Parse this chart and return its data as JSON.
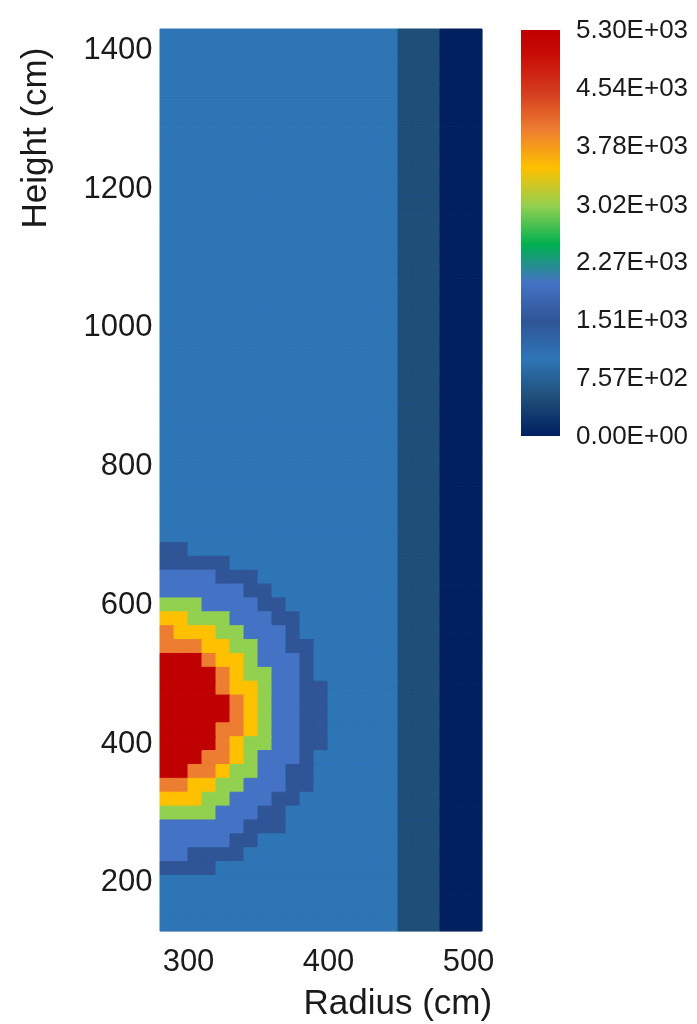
{
  "chart_data": {
    "type": "heatmap",
    "xlabel": "Radius (cm)",
    "ylabel": "Height (cm)",
    "x": [
      285,
      295,
      305,
      315,
      325,
      335,
      345,
      355,
      365,
      375,
      385,
      395,
      405,
      415,
      425,
      435,
      445,
      455,
      465,
      475,
      485,
      495,
      505
    ],
    "y_categories": [
      null,
      "1400",
      null,
      null,
      null,
      null,
      null,
      null,
      null,
      null,
      null,
      "1200",
      null,
      null,
      null,
      null,
      null,
      null,
      null,
      null,
      null,
      "1000",
      null,
      null,
      null,
      null,
      null,
      null,
      null,
      null,
      null,
      "800",
      null,
      null,
      null,
      null,
      null,
      null,
      null,
      null,
      null,
      "600",
      null,
      null,
      null,
      null,
      null,
      null,
      null,
      null,
      null,
      "400",
      null,
      null,
      null,
      null,
      null,
      null,
      null,
      null,
      null,
      "200",
      null,
      null,
      null
    ],
    "xlim": [
      280,
      510
    ],
    "xticks": [
      300,
      400,
      500
    ],
    "clim": [
      0,
      5300
    ],
    "cticks": [
      {
        "value": 0,
        "label": "0.00E+00"
      },
      {
        "value": 757,
        "label": "7.57E+02"
      },
      {
        "value": 1510,
        "label": "1.51E+03"
      },
      {
        "value": 2270,
        "label": "2.27E+03"
      },
      {
        "value": 3020,
        "label": "3.02E+03"
      },
      {
        "value": 3780,
        "label": "3.78E+03"
      },
      {
        "value": 4540,
        "label": "4.54E+03"
      },
      {
        "value": 5300,
        "label": "5.30E+03"
      }
    ],
    "cells": [
      [
        1000,
        1000,
        1000,
        1000,
        1000,
        1000,
        1000,
        1000,
        1000,
        1000,
        1000,
        1000,
        1000,
        1000,
        1000,
        1000,
        1000,
        500,
        500,
        500,
        0,
        0,
        0
      ],
      [
        1000,
        1000,
        1000,
        1000,
        1000,
        1000,
        1000,
        1000,
        1000,
        1000,
        1000,
        1000,
        1000,
        1000,
        1000,
        1000,
        1000,
        500,
        500,
        500,
        0,
        0,
        0
      ],
      [
        1000,
        1000,
        1000,
        1000,
        1000,
        1000,
        1000,
        1000,
        1000,
        1000,
        1000,
        1000,
        1000,
        1000,
        1000,
        1000,
        1000,
        500,
        500,
        500,
        0,
        0,
        0
      ],
      [
        1000,
        1000,
        1000,
        1000,
        1000,
        1000,
        1000,
        1000,
        1000,
        1000,
        1000,
        1000,
        1000,
        1000,
        1000,
        1000,
        1000,
        500,
        500,
        500,
        0,
        0,
        0
      ],
      [
        1000,
        1000,
        1000,
        1000,
        1000,
        1000,
        1000,
        1000,
        1000,
        1000,
        1000,
        1000,
        1000,
        1000,
        1000,
        1000,
        1000,
        500,
        500,
        500,
        0,
        0,
        0
      ],
      [
        1000,
        1000,
        1000,
        1000,
        1000,
        1000,
        1000,
        1000,
        1000,
        1000,
        1000,
        1000,
        1000,
        1000,
        1000,
        1000,
        1000,
        500,
        500,
        500,
        0,
        0,
        0
      ],
      [
        1000,
        1000,
        1000,
        1000,
        1000,
        1000,
        1000,
        1000,
        1000,
        1000,
        1000,
        1000,
        1000,
        1000,
        1000,
        1000,
        1000,
        500,
        500,
        500,
        0,
        0,
        0
      ],
      [
        1000,
        1000,
        1000,
        1000,
        1000,
        1000,
        1000,
        1000,
        1000,
        1000,
        1000,
        1000,
        1000,
        1000,
        1000,
        1000,
        1000,
        500,
        500,
        500,
        0,
        0,
        0
      ],
      [
        1000,
        1000,
        1000,
        1000,
        1000,
        1000,
        1000,
        1000,
        1000,
        1000,
        1000,
        1000,
        1000,
        1000,
        1000,
        1000,
        1000,
        500,
        500,
        500,
        0,
        0,
        0
      ],
      [
        1000,
        1000,
        1000,
        1000,
        1000,
        1000,
        1000,
        1000,
        1000,
        1000,
        1000,
        1000,
        1000,
        1000,
        1000,
        1000,
        1000,
        500,
        500,
        500,
        0,
        0,
        0
      ],
      [
        1000,
        1000,
        1000,
        1000,
        1000,
        1000,
        1000,
        1000,
        1000,
        1000,
        1000,
        1000,
        1000,
        1000,
        1000,
        1000,
        1000,
        500,
        500,
        500,
        0,
        0,
        0
      ],
      [
        1000,
        1000,
        1000,
        1000,
        1000,
        1000,
        1000,
        1000,
        1000,
        1000,
        1000,
        1000,
        1000,
        1000,
        1000,
        1000,
        1000,
        500,
        500,
        500,
        0,
        0,
        0
      ],
      [
        1000,
        1000,
        1000,
        1000,
        1000,
        1000,
        1000,
        1000,
        1000,
        1000,
        1000,
        1000,
        1000,
        1000,
        1000,
        1000,
        1000,
        500,
        500,
        500,
        0,
        0,
        0
      ],
      [
        1000,
        1000,
        1000,
        1000,
        1000,
        1000,
        1000,
        1000,
        1000,
        1000,
        1000,
        1000,
        1000,
        1000,
        1000,
        1000,
        1000,
        500,
        500,
        500,
        0,
        0,
        0
      ],
      [
        1000,
        1000,
        1000,
        1000,
        1000,
        1000,
        1000,
        1000,
        1000,
        1000,
        1000,
        1000,
        1000,
        1000,
        1000,
        1000,
        1000,
        500,
        500,
        500,
        0,
        0,
        0
      ],
      [
        1000,
        1000,
        1000,
        1000,
        1000,
        1000,
        1000,
        1000,
        1000,
        1000,
        1000,
        1000,
        1000,
        1000,
        1000,
        1000,
        1000,
        500,
        500,
        500,
        0,
        0,
        0
      ],
      [
        1000,
        1000,
        1000,
        1000,
        1000,
        1000,
        1000,
        1000,
        1000,
        1000,
        1000,
        1000,
        1000,
        1000,
        1000,
        1000,
        1000,
        500,
        500,
        500,
        0,
        0,
        0
      ],
      [
        1000,
        1000,
        1000,
        1000,
        1000,
        1000,
        1000,
        1000,
        1000,
        1000,
        1000,
        1000,
        1000,
        1000,
        1000,
        1000,
        1000,
        500,
        500,
        500,
        0,
        0,
        0
      ],
      [
        1000,
        1000,
        1000,
        1000,
        1000,
        1000,
        1000,
        1000,
        1000,
        1000,
        1000,
        1000,
        1000,
        1000,
        1000,
        1000,
        1000,
        500,
        500,
        500,
        0,
        0,
        0
      ],
      [
        1000,
        1000,
        1000,
        1000,
        1000,
        1000,
        1000,
        1000,
        1000,
        1000,
        1000,
        1000,
        1000,
        1000,
        1000,
        1000,
        1000,
        500,
        500,
        500,
        0,
        0,
        0
      ],
      [
        1000,
        1000,
        1000,
        1000,
        1000,
        1000,
        1000,
        1000,
        1000,
        1000,
        1000,
        1000,
        1000,
        1000,
        1000,
        1000,
        1000,
        500,
        500,
        500,
        0,
        0,
        0
      ],
      [
        1000,
        1000,
        1000,
        1000,
        1000,
        1000,
        1000,
        1000,
        1000,
        1000,
        1000,
        1000,
        1000,
        1000,
        1000,
        1000,
        1000,
        500,
        500,
        500,
        0,
        0,
        0
      ],
      [
        1000,
        1000,
        1000,
        1000,
        1000,
        1000,
        1000,
        1000,
        1000,
        1000,
        1000,
        1000,
        1000,
        1000,
        1000,
        1000,
        1000,
        500,
        500,
        500,
        0,
        0,
        0
      ],
      [
        1000,
        1000,
        1000,
        1000,
        1000,
        1000,
        1000,
        1000,
        1000,
        1000,
        1000,
        1000,
        1000,
        1000,
        1000,
        1000,
        1000,
        500,
        500,
        500,
        0,
        0,
        0
      ],
      [
        1000,
        1000,
        1000,
        1000,
        1000,
        1000,
        1000,
        1000,
        1000,
        1000,
        1000,
        1000,
        1000,
        1000,
        1000,
        1000,
        1000,
        500,
        500,
        500,
        0,
        0,
        0
      ],
      [
        1000,
        1000,
        1000,
        1000,
        1000,
        1000,
        1000,
        1000,
        1000,
        1000,
        1000,
        1000,
        1000,
        1000,
        1000,
        1000,
        1000,
        500,
        500,
        500,
        0,
        0,
        0
      ],
      [
        1000,
        1000,
        1000,
        1000,
        1000,
        1000,
        1000,
        1000,
        1000,
        1000,
        1000,
        1000,
        1000,
        1000,
        1000,
        1000,
        1000,
        500,
        500,
        500,
        0,
        0,
        0
      ],
      [
        1000,
        1000,
        1000,
        1000,
        1000,
        1000,
        1000,
        1000,
        1000,
        1000,
        1000,
        1000,
        1000,
        1000,
        1000,
        1000,
        1000,
        500,
        500,
        500,
        0,
        0,
        0
      ],
      [
        1000,
        1000,
        1000,
        1000,
        1000,
        1000,
        1000,
        1000,
        1000,
        1000,
        1000,
        1000,
        1000,
        1000,
        1000,
        1000,
        1000,
        500,
        500,
        500,
        0,
        0,
        0
      ],
      [
        1000,
        1000,
        1000,
        1000,
        1000,
        1000,
        1000,
        1000,
        1000,
        1000,
        1000,
        1000,
        1000,
        1000,
        1000,
        1000,
        1000,
        500,
        500,
        500,
        0,
        0,
        0
      ],
      [
        1000,
        1000,
        1000,
        1000,
        1000,
        1000,
        1000,
        1000,
        1000,
        1000,
        1000,
        1000,
        1000,
        1000,
        1000,
        1000,
        1000,
        500,
        500,
        500,
        0,
        0,
        0
      ],
      [
        1000,
        1000,
        1000,
        1000,
        1000,
        1000,
        1000,
        1000,
        1000,
        1000,
        1000,
        1000,
        1000,
        1000,
        1000,
        1000,
        1000,
        500,
        500,
        500,
        0,
        0,
        0
      ],
      [
        1000,
        1000,
        1000,
        1000,
        1000,
        1000,
        1000,
        1000,
        1000,
        1000,
        1000,
        1000,
        1000,
        1000,
        1000,
        1000,
        1000,
        500,
        500,
        500,
        0,
        0,
        0
      ],
      [
        1000,
        1000,
        1000,
        1000,
        1000,
        1000,
        1000,
        1000,
        1000,
        1000,
        1000,
        1000,
        1000,
        1000,
        1000,
        1000,
        1000,
        500,
        500,
        500,
        0,
        0,
        0
      ],
      [
        1000,
        1000,
        1000,
        1000,
        1000,
        1000,
        1000,
        1000,
        1000,
        1000,
        1000,
        1000,
        1000,
        1000,
        1000,
        1000,
        1000,
        500,
        500,
        500,
        0,
        0,
        0
      ],
      [
        1000,
        1000,
        1000,
        1000,
        1000,
        1000,
        1000,
        1000,
        1000,
        1000,
        1000,
        1000,
        1000,
        1000,
        1000,
        1000,
        1000,
        500,
        500,
        500,
        0,
        0,
        0
      ],
      [
        1000,
        1000,
        1000,
        1000,
        1000,
        1000,
        1000,
        1000,
        1000,
        1000,
        1000,
        1000,
        1000,
        1000,
        1000,
        1000,
        1000,
        500,
        500,
        500,
        0,
        0,
        0
      ],
      [
        1500,
        1500,
        1000,
        1000,
        1000,
        1000,
        1000,
        1000,
        1000,
        1000,
        1000,
        1000,
        1000,
        1000,
        1000,
        1000,
        1000,
        500,
        500,
        500,
        0,
        0,
        0
      ],
      [
        1500,
        1500,
        1500,
        1500,
        1500,
        1000,
        1000,
        1000,
        1000,
        1000,
        1000,
        1000,
        1000,
        1000,
        1000,
        1000,
        1000,
        500,
        500,
        500,
        0,
        0,
        0
      ],
      [
        2000,
        2000,
        2000,
        2000,
        1500,
        1500,
        1500,
        1000,
        1000,
        1000,
        1000,
        1000,
        1000,
        1000,
        1000,
        1000,
        1000,
        500,
        500,
        500,
        0,
        0,
        0
      ],
      [
        2000,
        2000,
        2000,
        2000,
        2000,
        2000,
        1500,
        1500,
        1000,
        1000,
        1000,
        1000,
        1000,
        1000,
        1000,
        1000,
        1000,
        500,
        500,
        500,
        0,
        0,
        0
      ],
      [
        3000,
        3000,
        3000,
        2000,
        2000,
        2000,
        2000,
        1500,
        1500,
        1000,
        1000,
        1000,
        1000,
        1000,
        1000,
        1000,
        1000,
        500,
        500,
        500,
        0,
        0,
        0
      ],
      [
        3500,
        3500,
        3000,
        3000,
        3000,
        2000,
        2000,
        2000,
        1500,
        1500,
        1000,
        1000,
        1000,
        1000,
        1000,
        1000,
        1000,
        500,
        500,
        500,
        0,
        0,
        0
      ],
      [
        4000,
        3500,
        3500,
        3500,
        3000,
        3000,
        2000,
        2000,
        2000,
        1500,
        1000,
        1000,
        1000,
        1000,
        1000,
        1000,
        1000,
        500,
        500,
        500,
        0,
        0,
        0
      ],
      [
        4000,
        4000,
        4000,
        3500,
        3500,
        3000,
        3000,
        2000,
        2000,
        1500,
        1500,
        1000,
        1000,
        1000,
        1000,
        1000,
        1000,
        500,
        500,
        500,
        0,
        0,
        0
      ],
      [
        5300,
        5300,
        5300,
        4000,
        3500,
        3500,
        3000,
        2000,
        2000,
        2000,
        1500,
        1000,
        1000,
        1000,
        1000,
        1000,
        1000,
        500,
        500,
        500,
        0,
        0,
        0
      ],
      [
        5300,
        5300,
        5300,
        5300,
        4000,
        3500,
        3000,
        3000,
        2000,
        2000,
        1500,
        1000,
        1000,
        1000,
        1000,
        1000,
        1000,
        500,
        500,
        500,
        0,
        0,
        0
      ],
      [
        5300,
        5300,
        5300,
        5300,
        4000,
        3500,
        3500,
        3000,
        2000,
        2000,
        1500,
        1500,
        1000,
        1000,
        1000,
        1000,
        1000,
        500,
        500,
        500,
        0,
        0,
        0
      ],
      [
        5300,
        5300,
        5300,
        5300,
        5300,
        4000,
        3500,
        3000,
        2000,
        2000,
        1500,
        1500,
        1000,
        1000,
        1000,
        1000,
        1000,
        500,
        500,
        500,
        0,
        0,
        0
      ],
      [
        5300,
        5300,
        5300,
        5300,
        5300,
        4000,
        3500,
        3000,
        2000,
        2000,
        1500,
        1500,
        1000,
        1000,
        1000,
        1000,
        1000,
        500,
        500,
        500,
        0,
        0,
        0
      ],
      [
        5300,
        5300,
        5300,
        5300,
        4000,
        4000,
        3500,
        3000,
        2000,
        2000,
        1500,
        1500,
        1000,
        1000,
        1000,
        1000,
        1000,
        500,
        500,
        500,
        0,
        0,
        0
      ],
      [
        5300,
        5300,
        5300,
        5300,
        4000,
        3500,
        3000,
        3000,
        2000,
        2000,
        1500,
        1500,
        1000,
        1000,
        1000,
        1000,
        1000,
        500,
        500,
        500,
        0,
        0,
        0
      ],
      [
        5300,
        5300,
        5300,
        4000,
        4000,
        3500,
        3000,
        2000,
        2000,
        2000,
        1500,
        1000,
        1000,
        1000,
        1000,
        1000,
        1000,
        500,
        500,
        500,
        0,
        0,
        0
      ],
      [
        5300,
        5300,
        4000,
        4000,
        3500,
        3000,
        3000,
        2000,
        2000,
        1500,
        1500,
        1000,
        1000,
        1000,
        1000,
        1000,
        1000,
        500,
        500,
        500,
        0,
        0,
        0
      ],
      [
        4000,
        4000,
        3500,
        3500,
        3000,
        3000,
        2000,
        2000,
        2000,
        1500,
        1500,
        1000,
        1000,
        1000,
        1000,
        1000,
        1000,
        500,
        500,
        500,
        0,
        0,
        0
      ],
      [
        3500,
        3500,
        3500,
        3000,
        3000,
        2000,
        2000,
        2000,
        1500,
        1500,
        1000,
        1000,
        1000,
        1000,
        1000,
        1000,
        1000,
        500,
        500,
        500,
        0,
        0,
        0
      ],
      [
        3000,
        3000,
        3000,
        3000,
        2000,
        2000,
        2000,
        1500,
        1500,
        1000,
        1000,
        1000,
        1000,
        1000,
        1000,
        1000,
        1000,
        500,
        500,
        500,
        0,
        0,
        0
      ],
      [
        2000,
        2000,
        2000,
        2000,
        2000,
        2000,
        1500,
        1500,
        1500,
        1000,
        1000,
        1000,
        1000,
        1000,
        1000,
        1000,
        1000,
        500,
        500,
        500,
        0,
        0,
        0
      ],
      [
        2000,
        2000,
        2000,
        2000,
        2000,
        1500,
        1500,
        1000,
        1000,
        1000,
        1000,
        1000,
        1000,
        1000,
        1000,
        1000,
        1000,
        500,
        500,
        500,
        0,
        0,
        0
      ],
      [
        2000,
        2000,
        1500,
        1500,
        1500,
        1500,
        1000,
        1000,
        1000,
        1000,
        1000,
        1000,
        1000,
        1000,
        1000,
        1000,
        1000,
        500,
        500,
        500,
        0,
        0,
        0
      ],
      [
        1500,
        1500,
        1500,
        1500,
        1000,
        1000,
        1000,
        1000,
        1000,
        1000,
        1000,
        1000,
        1000,
        1000,
        1000,
        1000,
        1000,
        500,
        500,
        500,
        0,
        0,
        0
      ],
      [
        1000,
        1000,
        1000,
        1000,
        1000,
        1000,
        1000,
        1000,
        1000,
        1000,
        1000,
        1000,
        1000,
        1000,
        1000,
        1000,
        1000,
        500,
        500,
        500,
        0,
        0,
        0
      ],
      [
        1000,
        1000,
        1000,
        1000,
        1000,
        1000,
        1000,
        1000,
        1000,
        1000,
        1000,
        1000,
        1000,
        1000,
        1000,
        1000,
        1000,
        500,
        500,
        500,
        0,
        0,
        0
      ],
      [
        1000,
        1000,
        1000,
        1000,
        1000,
        1000,
        1000,
        1000,
        1000,
        1000,
        1000,
        1000,
        1000,
        1000,
        1000,
        1000,
        1000,
        500,
        500,
        500,
        0,
        0,
        0
      ],
      [
        1000,
        1000,
        1000,
        1000,
        1000,
        1000,
        1000,
        1000,
        1000,
        1000,
        1000,
        1000,
        1000,
        1000,
        1000,
        1000,
        1000,
        500,
        500,
        500,
        0,
        0,
        0
      ]
    ]
  }
}
